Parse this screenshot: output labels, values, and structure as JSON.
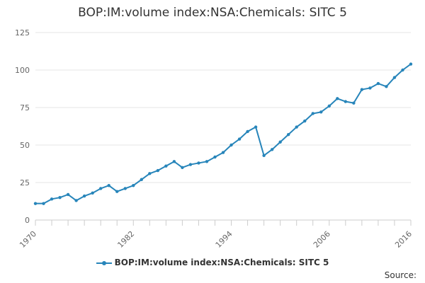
{
  "chart_data": {
    "type": "line",
    "title": "BOP:IM:volume index:NSA:Chemicals: SITC 5",
    "xlabel": "",
    "ylabel": "",
    "x": [
      1970,
      1971,
      1972,
      1973,
      1974,
      1975,
      1976,
      1977,
      1978,
      1979,
      1980,
      1981,
      1982,
      1983,
      1984,
      1985,
      1986,
      1987,
      1988,
      1989,
      1990,
      1991,
      1992,
      1993,
      1994,
      1995,
      1996,
      1997,
      1998,
      1999,
      2000,
      2001,
      2002,
      2003,
      2004,
      2005,
      2006,
      2007,
      2008,
      2009,
      2010,
      2011,
      2012,
      2013,
      2014,
      2015,
      2016
    ],
    "series": [
      {
        "name": "BOP:IM:volume index:NSA:Chemicals: SITC 5",
        "color": "#2785ba",
        "values": [
          11,
          11,
          14,
          15,
          17,
          13,
          16,
          18,
          21,
          23,
          19,
          21,
          23,
          27,
          31,
          33,
          36,
          39,
          35,
          37,
          38,
          39,
          42,
          45,
          50,
          54,
          59,
          62,
          43,
          47,
          52,
          57,
          62,
          66,
          71,
          72,
          76,
          81,
          79,
          78,
          87,
          88,
          91,
          89,
          95,
          100,
          104
        ]
      }
    ],
    "xlim": [
      1970,
      2016
    ],
    "ylim": [
      0,
      125
    ],
    "x_tick_labels": [
      "1970",
      "1982",
      "1994",
      "2006",
      "2016"
    ],
    "y_tick_labels": [
      "0",
      "25",
      "50",
      "75",
      "100",
      "125"
    ],
    "grid": true,
    "legend_position": "bottom-center",
    "credits": "Source:"
  }
}
